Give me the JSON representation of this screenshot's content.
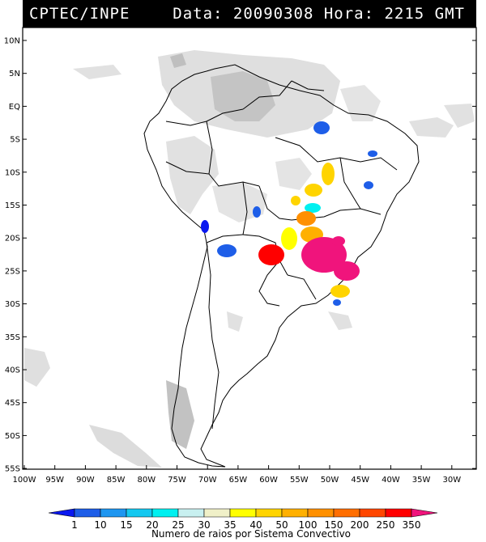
{
  "header": {
    "agency": "CPTEC/INPE",
    "info": "Data: 20090308 Hora: 2215 GMT"
  },
  "map": {
    "lon_range": [
      -100,
      -25
    ],
    "lat_range": [
      -56,
      12
    ],
    "lat_labels": [
      "10N",
      "5N",
      "EQ",
      "5S",
      "10S",
      "15S",
      "20S",
      "25S",
      "30S",
      "35S",
      "40S",
      "45S",
      "50S",
      "55S"
    ],
    "lon_labels": [
      "100W",
      "95W",
      "90W",
      "85W",
      "80W",
      "75W",
      "70W",
      "65W",
      "60W",
      "55W",
      "50W",
      "45W",
      "40W",
      "35W",
      "30W"
    ]
  },
  "colorbar": {
    "values": [
      "1",
      "10",
      "15",
      "20",
      "25",
      "30",
      "35",
      "40",
      "50",
      "100",
      "150",
      "200",
      "250",
      "350"
    ],
    "colors": [
      "#0a18f0",
      "#1e5ee8",
      "#1e96f0",
      "#14c8f0",
      "#00f0f0",
      "#c8f0f0",
      "#f0f0c8",
      "#ffff00",
      "#ffd400",
      "#ffb000",
      "#ff9000",
      "#ff6e00",
      "#ff4600",
      "#ff0000",
      "#f0147c"
    ],
    "caption": "Numero de raios por Sistema Convectivo"
  }
}
